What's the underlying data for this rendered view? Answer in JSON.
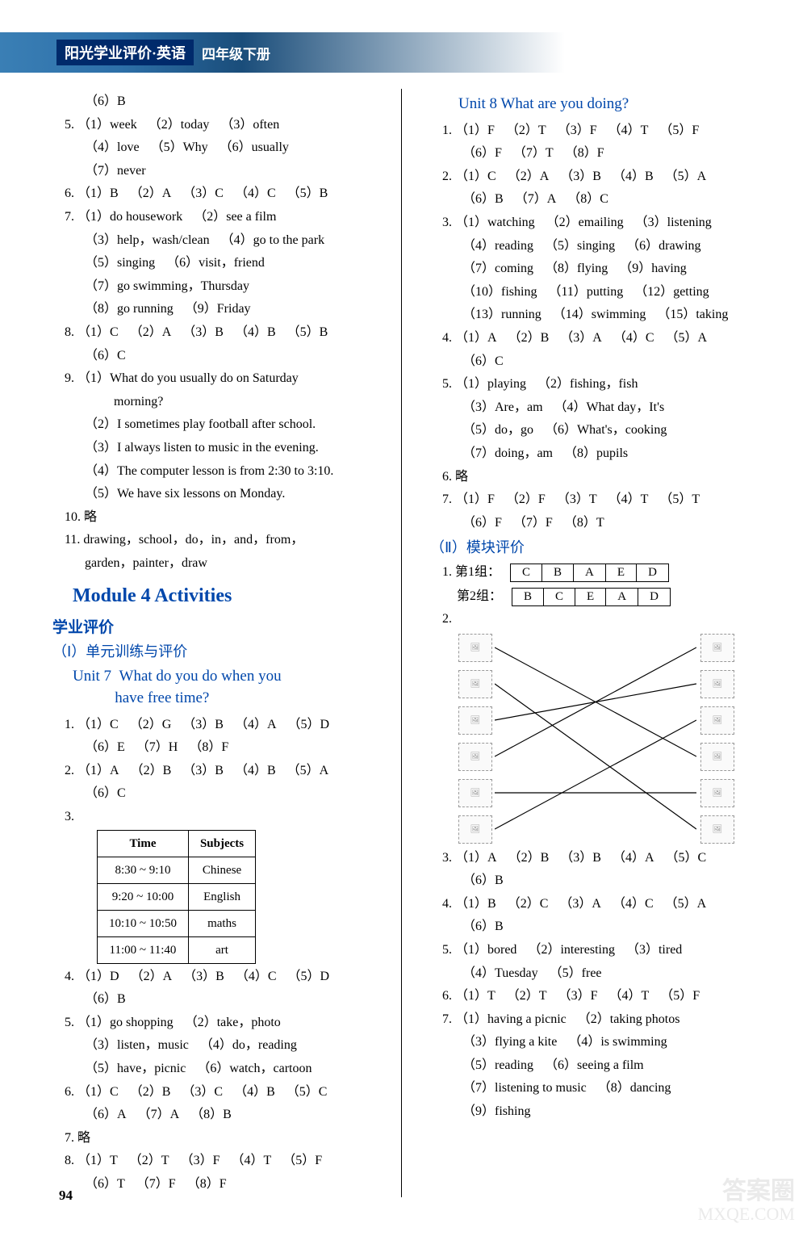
{
  "header": {
    "title": "阳光学业评价·英语",
    "sub": "四年级下册"
  },
  "pageNumber": "94",
  "watermark": {
    "line1": "答案圈",
    "line2": "MXQE.COM"
  },
  "left": {
    "pre": [
      {
        "num": "",
        "indent": true,
        "parts": [
          "（6）B"
        ]
      },
      {
        "num": "5.",
        "parts": [
          "（1）week",
          "（2）today",
          "（3）often"
        ]
      },
      {
        "num": "",
        "indent": true,
        "parts": [
          "（4）love",
          "（5）Why",
          "（6）usually"
        ]
      },
      {
        "num": "",
        "indent": true,
        "parts": [
          "（7）never"
        ]
      },
      {
        "num": "6.",
        "parts": [
          "（1）B",
          "（2）A",
          "（3）C",
          "（4）C",
          "（5）B"
        ]
      },
      {
        "num": "7.",
        "parts": [
          "（1）do housework",
          "（2）see a film"
        ]
      },
      {
        "num": "",
        "indent": true,
        "parts": [
          "（3）help，wash/clean",
          "（4）go to the park"
        ]
      },
      {
        "num": "",
        "indent": true,
        "parts": [
          "（5）singing",
          "（6）visit，friend"
        ]
      },
      {
        "num": "",
        "indent": true,
        "parts": [
          "（7）go swimming，Thursday"
        ]
      },
      {
        "num": "",
        "indent": true,
        "parts": [
          "（8）go running",
          "（9）Friday"
        ]
      },
      {
        "num": "8.",
        "parts": [
          "（1）C",
          "（2）A",
          "（3）B",
          "（4）B",
          "（5）B"
        ]
      },
      {
        "num": "",
        "indent": true,
        "parts": [
          "（6）C"
        ]
      },
      {
        "num": "9.",
        "parts": [
          "（1）What do you usually do on Saturday"
        ]
      },
      {
        "num": "",
        "indent": true,
        "parts": [
          "　　 morning?"
        ]
      },
      {
        "num": "",
        "indent": true,
        "parts": [
          "（2）I sometimes play football after school."
        ]
      },
      {
        "num": "",
        "indent": true,
        "parts": [
          "（3）I always listen to music in the evening."
        ]
      },
      {
        "num": "",
        "indent": true,
        "parts": [
          "（4）The computer lesson is from 2:30 to 3:10."
        ]
      },
      {
        "num": "",
        "indent": true,
        "parts": [
          "（5）We have six lessons on Monday."
        ]
      },
      {
        "num": "10.",
        "parts": [
          "略"
        ]
      },
      {
        "num": "11.",
        "parts": [
          "drawing，school，do，in，and，from，"
        ]
      },
      {
        "num": "",
        "indent": true,
        "parts": [
          "garden，painter，draw"
        ]
      }
    ],
    "moduleTitle": "Module 4  Activities",
    "sectionTitle": "学业评价",
    "subsectionTitle": "（Ⅰ）单元训练与评价",
    "unit7Title": "Unit 7  What do you do when you have free time?",
    "unit7": [
      {
        "num": "1.",
        "parts": [
          "（1）C",
          "（2）G",
          "（3）B",
          "（4）A",
          "（5）D"
        ]
      },
      {
        "num": "",
        "indent": true,
        "parts": [
          "（6）E",
          "（7）H",
          "（8）F"
        ]
      },
      {
        "num": "2.",
        "parts": [
          "（1）A",
          "（2）B",
          "（3）B",
          "（4）B",
          "（5）A"
        ]
      },
      {
        "num": "",
        "indent": true,
        "parts": [
          "（6）C"
        ]
      }
    ],
    "table": {
      "headers": [
        "Time",
        "Subjects"
      ],
      "rows": [
        [
          "8:30 ~ 9:10",
          "Chinese"
        ],
        [
          "9:20 ~ 10:00",
          "English"
        ],
        [
          "10:10 ~ 10:50",
          "maths"
        ],
        [
          "11:00 ~ 11:40",
          "art"
        ]
      ]
    },
    "unit7post": [
      {
        "num": "4.",
        "parts": [
          "（1）D",
          "（2）A",
          "（3）B",
          "（4）C",
          "（5）D"
        ]
      },
      {
        "num": "",
        "indent": true,
        "parts": [
          "（6）B"
        ]
      },
      {
        "num": "5.",
        "parts": [
          "（1）go shopping",
          "（2）take，photo"
        ]
      },
      {
        "num": "",
        "indent": true,
        "parts": [
          "（3）listen，music",
          "（4）do，reading"
        ]
      },
      {
        "num": "",
        "indent": true,
        "parts": [
          "（5）have，picnic",
          "（6）watch，cartoon"
        ]
      },
      {
        "num": "6.",
        "parts": [
          "（1）C",
          "（2）B",
          "（3）C",
          "（4）B",
          "（5）C"
        ]
      },
      {
        "num": "",
        "indent": true,
        "parts": [
          "（6）A",
          "（7）A",
          "（8）B"
        ]
      },
      {
        "num": "7.",
        "parts": [
          "略"
        ]
      },
      {
        "num": "8.",
        "parts": [
          "（1）T",
          "（2）T",
          "（3）F",
          "（4）T",
          "（5）F"
        ]
      },
      {
        "num": "",
        "indent": true,
        "parts": [
          "（6）T",
          "（7）F",
          "（8）F"
        ]
      }
    ]
  },
  "right": {
    "unit8Title": "Unit 8  What are you doing?",
    "unit8": [
      {
        "num": "1.",
        "parts": [
          "（1）F",
          "（2）T",
          "（3）F",
          "（4）T",
          "（5）F"
        ]
      },
      {
        "num": "",
        "indent": true,
        "parts": [
          "（6）F",
          "（7）T",
          "（8）F"
        ]
      },
      {
        "num": "2.",
        "parts": [
          "（1）C",
          "（2）A",
          "（3）B",
          "（4）B",
          "（5）A"
        ]
      },
      {
        "num": "",
        "indent": true,
        "parts": [
          "（6）B",
          "（7）A",
          "（8）C"
        ]
      },
      {
        "num": "3.",
        "parts": [
          "（1）watching",
          "（2）emailing",
          "（3）listening"
        ]
      },
      {
        "num": "",
        "indent": true,
        "parts": [
          "（4）reading",
          "（5）singing",
          "（6）drawing"
        ]
      },
      {
        "num": "",
        "indent": true,
        "parts": [
          "（7）coming",
          "（8）flying",
          "（9）having"
        ]
      },
      {
        "num": "",
        "indent": true,
        "parts": [
          "（10）fishing",
          "（11）putting",
          "（12）getting"
        ]
      },
      {
        "num": "",
        "indent": true,
        "parts": [
          "（13）running",
          "（14）swimming",
          "（15）taking"
        ]
      },
      {
        "num": "4.",
        "parts": [
          "（1）A",
          "（2）B",
          "（3）A",
          "（4）C",
          "（5）A"
        ]
      },
      {
        "num": "",
        "indent": true,
        "parts": [
          "（6）C"
        ]
      },
      {
        "num": "5.",
        "parts": [
          "（1）playing",
          "（2）fishing，fish"
        ]
      },
      {
        "num": "",
        "indent": true,
        "parts": [
          "（3）Are，am",
          "（4）What day，It's"
        ]
      },
      {
        "num": "",
        "indent": true,
        "parts": [
          "（5）do，go",
          "（6）What's，cooking"
        ]
      },
      {
        "num": "",
        "indent": true,
        "parts": [
          "（7）doing，am",
          "（8）pupils"
        ]
      },
      {
        "num": "6.",
        "parts": [
          "略"
        ]
      },
      {
        "num": "7.",
        "parts": [
          "（1）F",
          "（2）F",
          "（3）T",
          "（4）T",
          "（5）T"
        ]
      },
      {
        "num": "",
        "indent": true,
        "parts": [
          "（6）F",
          "（7）F",
          "（8）T"
        ]
      }
    ],
    "subsectionTitle": "（Ⅱ）模块评价",
    "group1Label": "第1组：",
    "group2Label": "第2组：",
    "group1": [
      "C",
      "B",
      "A",
      "E",
      "D"
    ],
    "group2": [
      "B",
      "C",
      "E",
      "A",
      "D"
    ],
    "matching": {
      "leftItems": [
        "img",
        "img",
        "img",
        "img",
        "img",
        "img"
      ],
      "rightItems": [
        "img",
        "img",
        "img",
        "img",
        "img",
        "img"
      ],
      "lines": [
        {
          "from": 0,
          "to": 3
        },
        {
          "from": 1,
          "to": 5
        },
        {
          "from": 2,
          "to": 1
        },
        {
          "from": 3,
          "to": 0
        },
        {
          "from": 4,
          "to": 4
        },
        {
          "from": 5,
          "to": 2
        }
      ],
      "lineColor": "#000"
    },
    "modPost": [
      {
        "num": "3.",
        "parts": [
          "（1）A",
          "（2）B",
          "（3）B",
          "（4）A",
          "（5）C"
        ]
      },
      {
        "num": "",
        "indent": true,
        "parts": [
          "（6）B"
        ]
      },
      {
        "num": "4.",
        "parts": [
          "（1）B",
          "（2）C",
          "（3）A",
          "（4）C",
          "（5）A"
        ]
      },
      {
        "num": "",
        "indent": true,
        "parts": [
          "（6）B"
        ]
      },
      {
        "num": "5.",
        "parts": [
          "（1）bored",
          "（2）interesting",
          "（3）tired"
        ]
      },
      {
        "num": "",
        "indent": true,
        "parts": [
          "（4）Tuesday",
          "（5）free"
        ]
      },
      {
        "num": "6.",
        "parts": [
          "（1）T",
          "（2）T",
          "（3）F",
          "（4）T",
          "（5）F"
        ]
      },
      {
        "num": "7.",
        "parts": [
          "（1）having a picnic",
          "（2）taking photos"
        ]
      },
      {
        "num": "",
        "indent": true,
        "parts": [
          "（3）flying a kite",
          "（4）is swimming"
        ]
      },
      {
        "num": "",
        "indent": true,
        "parts": [
          "（5）reading",
          "（6）seeing a film"
        ]
      },
      {
        "num": "",
        "indent": true,
        "parts": [
          "（7）listening to music",
          "（8）dancing"
        ]
      },
      {
        "num": "",
        "indent": true,
        "parts": [
          "（9）fishing"
        ]
      }
    ]
  }
}
